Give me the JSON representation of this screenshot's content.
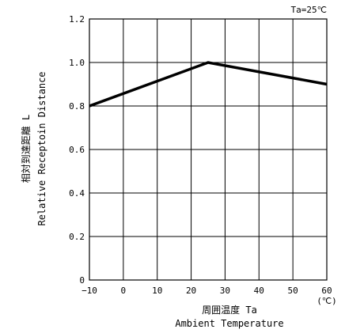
{
  "chart_data": {
    "type": "line",
    "condition": "Ta=25℃",
    "xlabel_jp": "周囲温度 Ta",
    "xlabel_en": "Ambient Temperature",
    "xunit": "(℃)",
    "ylabel_jp": "相対到達距離 L",
    "ylabel_en": "Relative Receptoin Distance",
    "xlim": [
      -10,
      60
    ],
    "ylim": [
      0,
      1.2
    ],
    "x_ticks": [
      "-10",
      "0",
      "10",
      "20",
      "30",
      "40",
      "50",
      "60"
    ],
    "y_ticks": [
      "0",
      "0.2",
      "0.4",
      "0.6",
      "0.8",
      "1.0",
      "1.2"
    ],
    "grid": true,
    "series": [
      {
        "x": [
          -10,
          25,
          60
        ],
        "y": [
          0.8,
          1.0,
          0.9
        ]
      }
    ]
  }
}
